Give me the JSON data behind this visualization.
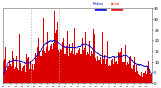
{
  "bg_color": "#ffffff",
  "bar_color": "#dd0000",
  "median_color": "#0000cc",
  "ylim": [
    0,
    35
  ],
  "n_points": 1440,
  "vline_positions": [
    270,
    540
  ],
  "vline_color": "#aaaaaa",
  "legend_actual": "Actual",
  "legend_median": "Median",
  "seed": 7
}
